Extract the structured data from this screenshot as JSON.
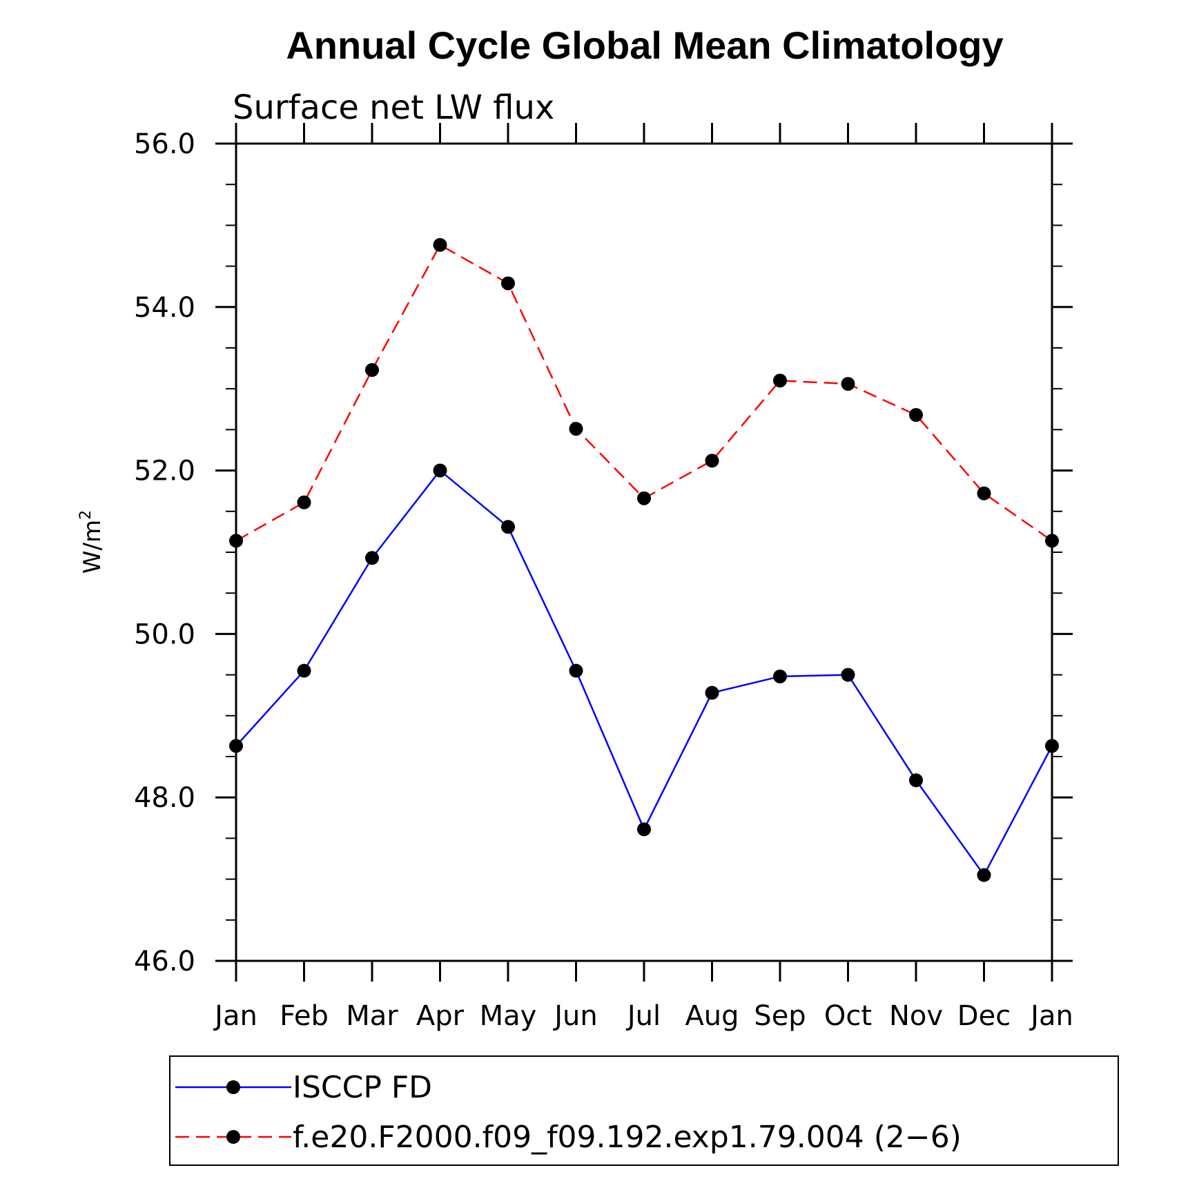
{
  "chart_data": {
    "type": "line",
    "title": "Annual Cycle Global Mean Climatology",
    "subtitle": "Surface net LW flux",
    "ylabel": "W/m",
    "ylabel_sup": "2",
    "xlabel": "",
    "categories": [
      "Jan",
      "Feb",
      "Mar",
      "Apr",
      "May",
      "Jun",
      "Jul",
      "Aug",
      "Sep",
      "Oct",
      "Nov",
      "Dec",
      "Jan"
    ],
    "ylim": [
      46.0,
      56.0
    ],
    "yticks": [
      "46.0",
      "48.0",
      "50.0",
      "52.0",
      "54.0",
      "56.0"
    ],
    "ytick_values": [
      46,
      48,
      50,
      52,
      54,
      56
    ],
    "grid": false,
    "legend_position": "bottom",
    "series": [
      {
        "name": "ISCCP FD",
        "color": "#0000ff",
        "line_style": "solid",
        "marker": "filled-circle",
        "values": [
          48.63,
          49.55,
          50.93,
          52.0,
          51.31,
          49.55,
          47.61,
          49.28,
          49.48,
          49.5,
          48.21,
          47.05,
          48.63
        ]
      },
      {
        "name": "f.e20.F2000.f09_f09.192.exp1.79.004 (2−6)",
        "color": "#ff0000",
        "line_style": "dashed",
        "marker": "filled-circle",
        "values": [
          51.14,
          51.61,
          53.23,
          54.76,
          54.29,
          52.51,
          51.66,
          52.12,
          53.1,
          53.06,
          52.68,
          51.72,
          51.14
        ]
      }
    ]
  }
}
